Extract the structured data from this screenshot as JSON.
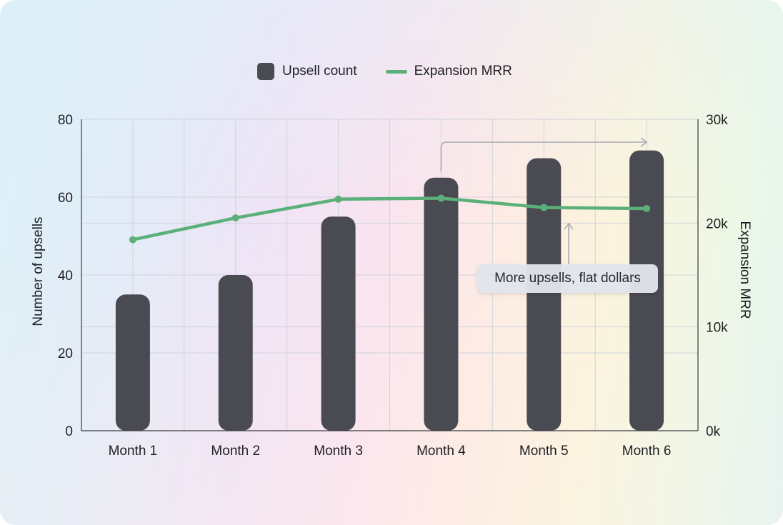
{
  "legend": {
    "items": [
      {
        "label": "Upsell count",
        "type": "bar",
        "color": "#4a4b52"
      },
      {
        "label": "Expansion MRR",
        "type": "line",
        "color": "#5bb07a"
      }
    ]
  },
  "axes": {
    "left": {
      "label": "Number of upsells",
      "ticks": [
        "0",
        "20",
        "40",
        "60",
        "80"
      ]
    },
    "right": {
      "label": "Expansion MRR",
      "ticks": [
        "0k",
        "10k",
        "20k",
        "30k"
      ]
    },
    "x": {
      "ticks": [
        "Month 1",
        "Month 2",
        "Month 3",
        "Month 4",
        "Month 5",
        "Month 6"
      ]
    }
  },
  "annotation": {
    "text": "More upsells, flat dollars"
  },
  "colors": {
    "bar": "#4a4b52",
    "line": "#5bb07a",
    "grid": "#cfd3dc",
    "axis": "#3a3b40",
    "arrow": "#a9abb2"
  },
  "chart_data": {
    "type": "bar",
    "title": "",
    "categories": [
      "Month 1",
      "Month 2",
      "Month 3",
      "Month 4",
      "Month 5",
      "Month 6"
    ],
    "series": [
      {
        "name": "Upsell count",
        "type": "bar",
        "axis": "left",
        "values": [
          35,
          40,
          55,
          65,
          70,
          72
        ]
      },
      {
        "name": "Expansion MRR",
        "type": "line",
        "axis": "right",
        "values": [
          18400,
          20500,
          22300,
          22400,
          21500,
          21400
        ]
      }
    ],
    "xlabel": "",
    "ylabel": "Number of upsells",
    "ylabel_right": "Expansion MRR",
    "ylim": [
      0,
      80
    ],
    "ylim_right": [
      0,
      30000
    ],
    "grid": true,
    "legend_position": "top-center",
    "annotations": [
      {
        "text": "More upsells, flat dollars",
        "type": "callout",
        "points_to": "Month 5 line"
      },
      {
        "type": "bracket-arrow",
        "from": "Month 4",
        "to": "Month 6"
      }
    ]
  }
}
